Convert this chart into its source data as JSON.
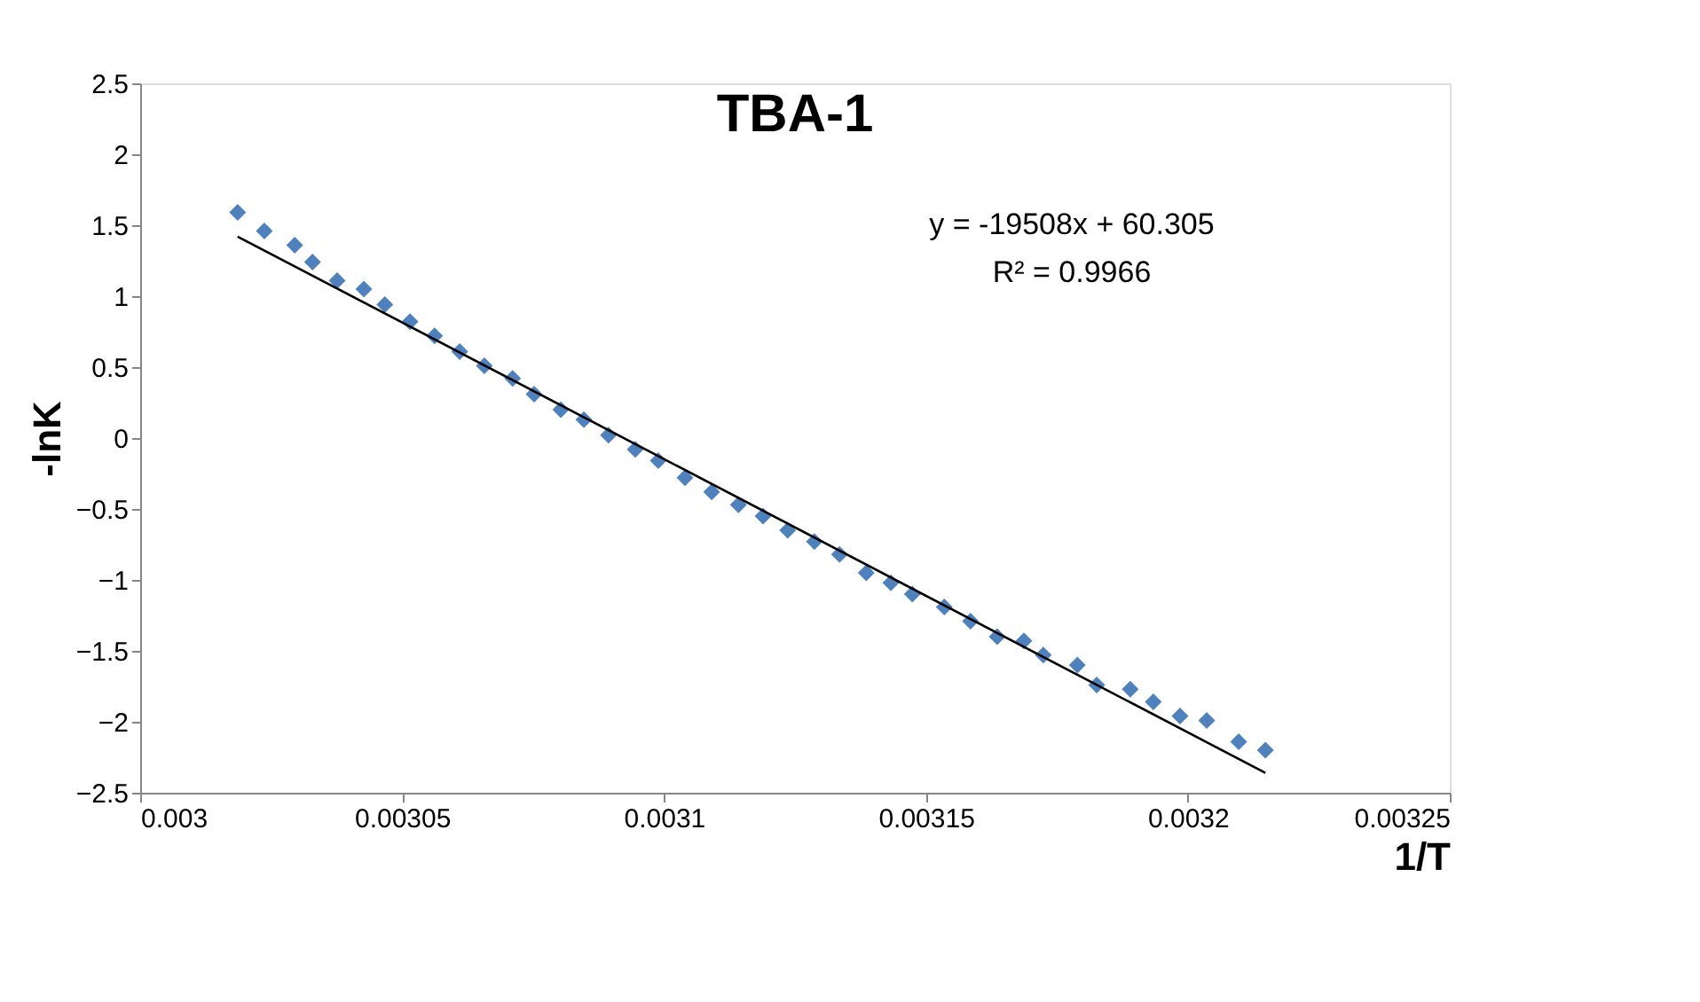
{
  "chart_data": {
    "type": "scatter",
    "title": "TBA-1",
    "xlabel": "1/T",
    "ylabel": "-lnK",
    "x": [
      0.0030186,
      0.0030237,
      0.0030295,
      0.0030329,
      0.0030376,
      0.0030427,
      0.0030467,
      0.0030515,
      0.0030562,
      0.003061,
      0.0030657,
      0.0030711,
      0.0030752,
      0.0030803,
      0.0030847,
      0.0030894,
      0.0030945,
      0.0030989,
      0.003104,
      0.0031091,
      0.0031142,
      0.0031189,
      0.0031236,
      0.0031287,
      0.0031335,
      0.0031386,
      0.0031433,
      0.0031474,
      0.0031535,
      0.0031585,
      0.0031636,
      0.0031687,
      0.0031724,
      0.0031789,
      0.0031826,
      0.003189,
      0.0031934,
      0.0031985,
      0.0032036,
      0.0032097,
      0.0032148
    ],
    "series": [
      {
        "color": "#4f81bd",
        "marker": "diamond",
        "values": [
          1.59,
          1.46,
          1.36,
          1.24,
          1.11,
          1.05,
          0.94,
          0.82,
          0.72,
          0.61,
          0.51,
          0.42,
          0.31,
          0.2,
          0.13,
          0.02,
          -0.08,
          -0.16,
          -0.28,
          -0.38,
          -0.47,
          -0.55,
          -0.65,
          -0.73,
          -0.82,
          -0.95,
          -1.02,
          -1.1,
          -1.19,
          -1.29,
          -1.4,
          -1.43,
          -1.53,
          -1.6,
          -1.74,
          -1.77,
          -1.86,
          -1.96,
          -1.99,
          -2.14,
          -2.2
        ]
      },
      {
        "type": "line",
        "color": "#000000",
        "marker": "none",
        "line_style": "solid",
        "x": [
          0.0030186,
          0.0032148
        ],
        "values": [
          1.42,
          -2.36
        ]
      }
    ],
    "annotations": [
      "y = -19508x + 60.305",
      "R² = 0.9966"
    ],
    "xlim": [
      0.003,
      0.00325
    ],
    "xticks": [
      0.003,
      0.00305,
      0.0031,
      0.00315,
      0.0032,
      0.00325
    ],
    "ylim": [
      -2.5,
      2.5
    ],
    "yticks": [
      -2.5,
      -2,
      -1.5,
      -1,
      -0.5,
      0,
      0.5,
      1,
      1.5,
      2,
      2.5
    ],
    "grid": false
  }
}
